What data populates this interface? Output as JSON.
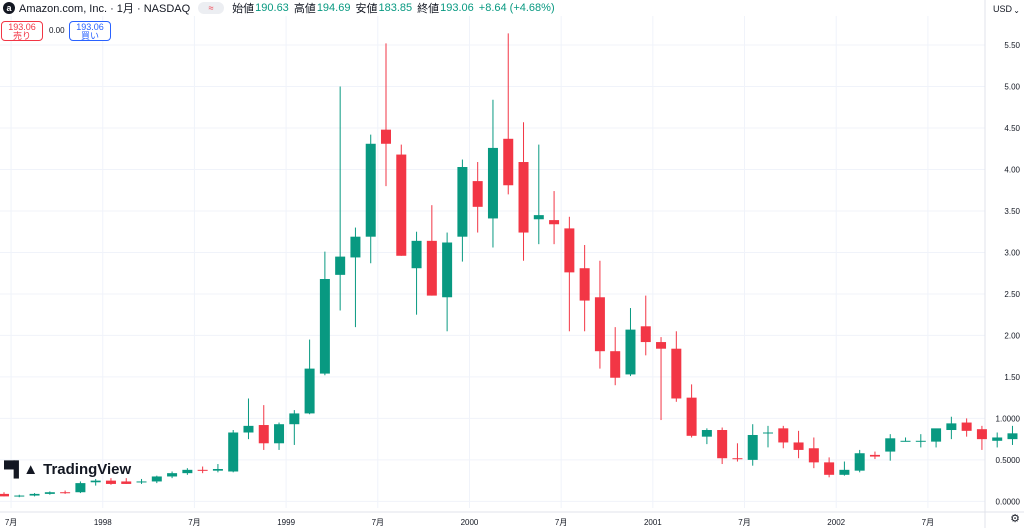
{
  "header": {
    "logo_letter": "a",
    "symbol": "Amazon.com, Inc. · 1月 · NASDAQ",
    "compare_icon": "≈",
    "open_label": "始値",
    "open": "190.63",
    "high_label": "高値",
    "high": "194.69",
    "low_label": "安値",
    "low": "183.85",
    "close_label": "終値",
    "close": "193.06",
    "change": "+8.64 (+4.68%)"
  },
  "trade": {
    "sell_price": "193.06",
    "sell_label": "売り",
    "spread": "0.00",
    "buy_price": "193.06",
    "buy_label": "買い"
  },
  "currency": "USD",
  "brand": "TradingView",
  "colors": {
    "up": "#089981",
    "down": "#f23645",
    "grid": "#f0f3fa",
    "text": "#131722"
  },
  "chart_data": {
    "type": "candlestick",
    "y_ticks": [
      "5.50",
      "5.00",
      "4.50",
      "4.00",
      "3.50",
      "3.00",
      "2.50",
      "2.00",
      "1.50",
      "1.0000",
      "0.5000",
      "0.0000"
    ],
    "x_ticks": [
      "7月",
      "1998",
      "7月",
      "1999",
      "7月",
      "2000",
      "7月",
      "2001",
      "7月",
      "2002",
      "7月"
    ],
    "ylim": [
      -0.08,
      5.85
    ],
    "grid": true,
    "ohlc": [
      [
        0.09,
        0.11,
        0.06,
        0.06
      ],
      [
        0.06,
        0.08,
        0.05,
        0.07
      ],
      [
        0.07,
        0.1,
        0.06,
        0.09
      ],
      [
        0.09,
        0.12,
        0.08,
        0.11
      ],
      [
        0.11,
        0.13,
        0.09,
        0.1
      ],
      [
        0.11,
        0.24,
        0.1,
        0.22
      ],
      [
        0.23,
        0.27,
        0.19,
        0.25
      ],
      [
        0.25,
        0.28,
        0.2,
        0.21
      ],
      [
        0.24,
        0.28,
        0.21,
        0.21
      ],
      [
        0.23,
        0.27,
        0.21,
        0.24
      ],
      [
        0.24,
        0.31,
        0.22,
        0.3
      ],
      [
        0.3,
        0.36,
        0.28,
        0.34
      ],
      [
        0.34,
        0.4,
        0.32,
        0.38
      ],
      [
        0.38,
        0.42,
        0.34,
        0.37
      ],
      [
        0.37,
        0.45,
        0.35,
        0.39
      ],
      [
        0.36,
        0.86,
        0.35,
        0.83
      ],
      [
        0.83,
        1.24,
        0.75,
        0.91
      ],
      [
        0.92,
        1.16,
        0.62,
        0.7
      ],
      [
        0.7,
        0.95,
        0.62,
        0.93
      ],
      [
        0.93,
        1.1,
        0.68,
        1.06
      ],
      [
        1.06,
        1.95,
        1.05,
        1.6
      ],
      [
        1.54,
        3.01,
        1.52,
        2.68
      ],
      [
        2.73,
        5.0,
        2.3,
        2.95
      ],
      [
        2.94,
        3.3,
        2.1,
        3.19
      ],
      [
        3.19,
        4.42,
        2.87,
        4.31
      ],
      [
        4.48,
        5.52,
        3.8,
        4.31
      ],
      [
        4.18,
        4.3,
        2.96,
        2.96
      ],
      [
        2.81,
        3.25,
        2.25,
        3.14
      ],
      [
        3.14,
        3.57,
        2.48,
        2.48
      ],
      [
        2.46,
        3.24,
        2.05,
        3.12
      ],
      [
        3.19,
        4.12,
        2.89,
        4.03
      ],
      [
        3.86,
        4.09,
        3.24,
        3.55
      ],
      [
        3.41,
        4.84,
        3.06,
        4.26
      ],
      [
        4.37,
        5.64,
        3.7,
        3.81
      ],
      [
        4.09,
        4.57,
        2.9,
        3.24
      ],
      [
        3.4,
        4.3,
        3.1,
        3.45
      ],
      [
        3.39,
        3.74,
        3.1,
        3.34
      ],
      [
        3.29,
        3.43,
        2.05,
        2.76
      ],
      [
        2.81,
        3.09,
        2.05,
        2.42
      ],
      [
        2.46,
        2.9,
        1.6,
        1.81
      ],
      [
        1.81,
        2.1,
        1.4,
        1.49
      ],
      [
        1.53,
        2.33,
        1.51,
        2.07
      ],
      [
        2.11,
        2.48,
        1.76,
        1.92
      ],
      [
        1.92,
        1.98,
        0.98,
        1.84
      ],
      [
        1.84,
        2.05,
        1.2,
        1.24
      ],
      [
        1.25,
        1.41,
        0.77,
        0.79
      ],
      [
        0.78,
        0.88,
        0.69,
        0.86
      ],
      [
        0.86,
        0.89,
        0.45,
        0.52
      ],
      [
        0.52,
        0.7,
        0.48,
        0.51
      ],
      [
        0.5,
        0.93,
        0.43,
        0.8
      ],
      [
        0.82,
        0.91,
        0.65,
        0.83
      ],
      [
        0.88,
        0.91,
        0.64,
        0.71
      ],
      [
        0.71,
        0.85,
        0.52,
        0.62
      ],
      [
        0.64,
        0.77,
        0.4,
        0.47
      ],
      [
        0.47,
        0.53,
        0.29,
        0.32
      ],
      [
        0.32,
        0.48,
        0.31,
        0.38
      ],
      [
        0.37,
        0.62,
        0.35,
        0.58
      ],
      [
        0.56,
        0.6,
        0.51,
        0.54
      ],
      [
        0.6,
        0.81,
        0.49,
        0.76
      ],
      [
        0.72,
        0.77,
        0.72,
        0.73
      ],
      [
        0.72,
        0.81,
        0.65,
        0.73
      ],
      [
        0.72,
        0.87,
        0.65,
        0.88
      ],
      [
        0.86,
        1.02,
        0.75,
        0.94
      ],
      [
        0.95,
        1.0,
        0.78,
        0.85
      ],
      [
        0.87,
        0.91,
        0.62,
        0.75
      ],
      [
        0.73,
        0.83,
        0.65,
        0.77
      ],
      [
        0.75,
        0.91,
        0.68,
        0.82
      ]
    ]
  }
}
